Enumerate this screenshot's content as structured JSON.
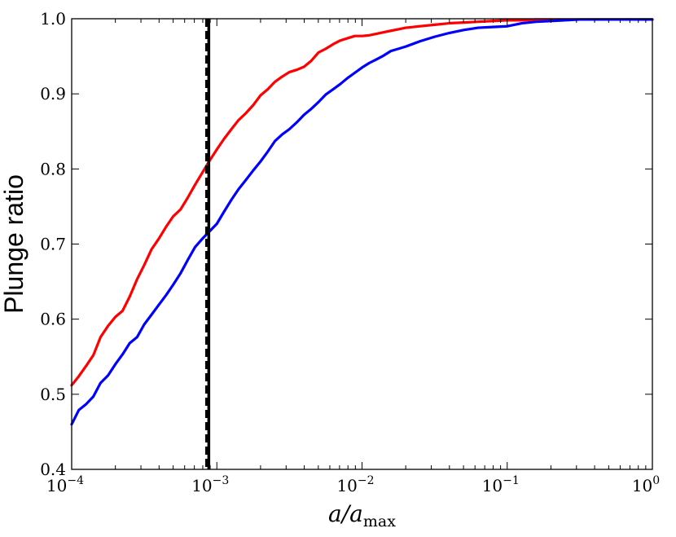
{
  "chart_data": {
    "type": "line",
    "xscale": "log",
    "xlim": [
      0.0001,
      1
    ],
    "ylim": [
      0.4,
      1.0
    ],
    "ylabel": "Plunge ratio",
    "xlabel": {
      "main": "a/a",
      "sub": "max"
    },
    "grid": false,
    "x_ticks": [
      {
        "base": "10",
        "exp": "−4",
        "value": 0.0001
      },
      {
        "base": "10",
        "exp": "−3",
        "value": 0.001
      },
      {
        "base": "10",
        "exp": "−2",
        "value": 0.01
      },
      {
        "base": "10",
        "exp": "−1",
        "value": 0.1
      },
      {
        "base": "10",
        "exp": "0",
        "value": 1
      }
    ],
    "y_ticks": [
      {
        "label": "0.4",
        "value": 0.4
      },
      {
        "label": "0.5",
        "value": 0.5
      },
      {
        "label": "0.6",
        "value": 0.6
      },
      {
        "label": "0.7",
        "value": 0.7
      },
      {
        "label": "0.8",
        "value": 0.8
      },
      {
        "label": "0.9",
        "value": 0.9
      },
      {
        "label": "1.0",
        "value": 1.0
      }
    ],
    "series": [
      {
        "color": "#ff0000",
        "x": [
          0.0001,
          0.000112,
          0.000126,
          0.000141,
          0.000158,
          0.000178,
          0.0002,
          0.000224,
          0.000251,
          0.000282,
          0.000316,
          0.000355,
          0.000398,
          0.000447,
          0.000501,
          0.000562,
          0.000631,
          0.000708,
          0.000794,
          0.000891,
          0.001,
          0.00112,
          0.00126,
          0.00141,
          0.00158,
          0.00178,
          0.002,
          0.00224,
          0.00251,
          0.00282,
          0.00316,
          0.00355,
          0.00398,
          0.00447,
          0.00501,
          0.00562,
          0.00631,
          0.00708,
          0.00794,
          0.00891,
          0.01,
          0.0112,
          0.0126,
          0.0141,
          0.0158,
          0.0178,
          0.02,
          0.0251,
          0.0316,
          0.0398,
          0.0501,
          0.0631,
          0.0794,
          0.1,
          0.126,
          0.158,
          0.2,
          0.316,
          0.501,
          1
        ],
        "y": [
          0.512,
          0.524,
          0.538,
          0.552,
          0.576,
          0.591,
          0.603,
          0.611,
          0.63,
          0.653,
          0.672,
          0.693,
          0.707,
          0.723,
          0.737,
          0.746,
          0.762,
          0.779,
          0.795,
          0.811,
          0.826,
          0.84,
          0.853,
          0.865,
          0.874,
          0.885,
          0.898,
          0.906,
          0.916,
          0.923,
          0.929,
          0.932,
          0.936,
          0.944,
          0.955,
          0.96,
          0.966,
          0.971,
          0.974,
          0.977,
          0.977,
          0.978,
          0.98,
          0.982,
          0.984,
          0.986,
          0.988,
          0.99,
          0.992,
          0.994,
          0.995,
          0.996,
          0.997,
          0.998,
          0.998,
          0.999,
          0.999,
          0.999,
          0.999,
          0.999
        ]
      },
      {
        "color": "#0000ff",
        "x": [
          0.0001,
          0.000112,
          0.000126,
          0.000141,
          0.000158,
          0.000178,
          0.0002,
          0.000224,
          0.000251,
          0.000282,
          0.000316,
          0.000355,
          0.000398,
          0.000447,
          0.000501,
          0.000562,
          0.000631,
          0.000708,
          0.000794,
          0.000891,
          0.001,
          0.00112,
          0.00126,
          0.00141,
          0.00158,
          0.00178,
          0.002,
          0.00224,
          0.00251,
          0.00282,
          0.00316,
          0.00355,
          0.00398,
          0.00447,
          0.00501,
          0.00562,
          0.00631,
          0.00708,
          0.00794,
          0.00891,
          0.01,
          0.0112,
          0.0126,
          0.0141,
          0.0158,
          0.0178,
          0.02,
          0.0251,
          0.0316,
          0.0398,
          0.0501,
          0.0631,
          0.0794,
          0.1,
          0.126,
          0.158,
          0.2,
          0.316,
          0.501,
          1
        ],
        "y": [
          0.46,
          0.479,
          0.487,
          0.497,
          0.515,
          0.525,
          0.54,
          0.553,
          0.568,
          0.576,
          0.593,
          0.606,
          0.619,
          0.632,
          0.646,
          0.661,
          0.679,
          0.696,
          0.707,
          0.717,
          0.727,
          0.743,
          0.759,
          0.773,
          0.785,
          0.798,
          0.81,
          0.823,
          0.837,
          0.846,
          0.853,
          0.862,
          0.872,
          0.88,
          0.889,
          0.899,
          0.906,
          0.913,
          0.921,
          0.928,
          0.935,
          0.941,
          0.946,
          0.951,
          0.957,
          0.96,
          0.963,
          0.97,
          0.976,
          0.981,
          0.985,
          0.988,
          0.989,
          0.99,
          0.994,
          0.996,
          0.997,
          0.999,
          0.999,
          0.999
        ]
      }
    ],
    "vlines": [
      {
        "x": 0.00085,
        "style": "dashed",
        "color": "#000000"
      },
      {
        "x": 0.00088,
        "style": "solid",
        "color": "#000000"
      }
    ]
  }
}
